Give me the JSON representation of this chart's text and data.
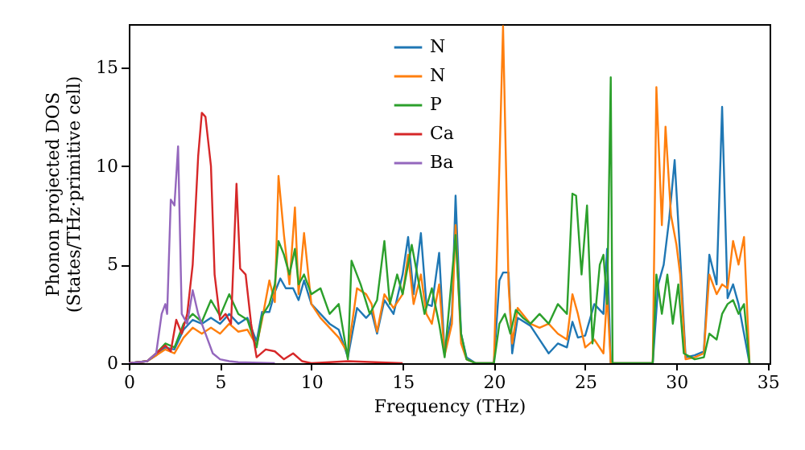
{
  "chart_data": {
    "type": "line",
    "xlabel": "Frequency (THz)",
    "ylabel": "Phonon projected DOS\n(States/THz·primitive cell)",
    "xlim": [
      0,
      35.1
    ],
    "ylim": [
      0,
      17.2
    ],
    "xticks": [
      0,
      5,
      10,
      15,
      20,
      25,
      30,
      35
    ],
    "yticks": [
      0,
      5,
      10,
      15
    ],
    "grid": false,
    "legend": "top",
    "line_style": "solid",
    "marker": "none",
    "series": [
      {
        "name": "N",
        "color": "#1f77b4",
        "x": [
          0,
          1,
          1.5,
          2,
          2.5,
          3,
          3.5,
          4,
          4.5,
          5,
          5.5,
          6,
          6.5,
          7,
          7.3,
          7.7,
          8,
          8.3,
          8.6,
          9,
          9.3,
          9.6,
          10,
          10.5,
          11,
          11.5,
          12,
          12.5,
          13,
          13.3,
          13.6,
          14,
          14.5,
          15,
          15.3,
          15.6,
          16,
          16.3,
          16.6,
          17,
          17.3,
          17.7,
          17.9,
          18.2,
          18.5,
          19,
          20,
          20.3,
          20.5,
          20.8,
          21,
          21.3,
          22,
          22.5,
          23,
          23.5,
          24,
          24.3,
          24.6,
          25,
          25.5,
          26,
          26.2,
          26.4,
          28.7,
          29,
          29.3,
          29.6,
          29.9,
          30.2,
          30.5,
          31,
          31.5,
          31.8,
          32.2,
          32.5,
          32.8,
          33.1,
          33.4,
          33.7,
          34
        ],
        "values": [
          0,
          0.1,
          0.4,
          0.8,
          0.7,
          1.7,
          2.2,
          2.0,
          2.3,
          2.0,
          2.5,
          2.0,
          2.3,
          1.1,
          2.6,
          2.6,
          3.6,
          4.3,
          3.8,
          3.8,
          3.2,
          4.2,
          3.0,
          2.5,
          2.0,
          1.7,
          0.3,
          2.8,
          2.3,
          2.6,
          1.5,
          3.2,
          2.5,
          4.5,
          6.4,
          3.5,
          6.6,
          3.0,
          2.9,
          5.6,
          0.5,
          2.5,
          8.5,
          1.5,
          0.3,
          0,
          0,
          4.2,
          4.6,
          4.6,
          0.5,
          2.3,
          1.9,
          1.2,
          0.5,
          1.0,
          0.8,
          2.1,
          1.3,
          1.4,
          3.0,
          2.5,
          5.8,
          0,
          0,
          4.0,
          5.0,
          7.3,
          10.3,
          5.5,
          0.3,
          0.4,
          0.6,
          5.5,
          4.0,
          13.0,
          3.3,
          4.0,
          3.0,
          1.5,
          0
        ]
      },
      {
        "name": "N",
        "color": "#ff7f0e",
        "x": [
          0,
          1,
          1.5,
          2,
          2.5,
          3,
          3.5,
          4,
          4.5,
          5,
          5.5,
          6,
          6.5,
          7,
          7.3,
          7.7,
          8,
          8.2,
          8.5,
          8.8,
          9.1,
          9.3,
          9.6,
          10,
          10.5,
          11,
          11.5,
          12,
          12.5,
          13,
          13.3,
          13.6,
          14,
          14.5,
          15,
          15.3,
          15.6,
          16,
          16.3,
          16.6,
          17,
          17.3,
          17.7,
          17.9,
          18.2,
          18.5,
          19,
          20,
          20.3,
          20.5,
          20.8,
          21,
          21.3,
          22,
          22.5,
          23,
          23.5,
          24,
          24.3,
          24.6,
          25,
          25.5,
          26,
          26.2,
          26.4,
          28.7,
          28.9,
          29.2,
          29.4,
          29.7,
          30,
          30.2,
          30.5,
          31,
          31.5,
          31.8,
          32.2,
          32.5,
          32.8,
          33.1,
          33.4,
          33.7,
          34
        ],
        "values": [
          0,
          0.1,
          0.4,
          0.7,
          0.5,
          1.3,
          1.8,
          1.5,
          1.8,
          1.5,
          2.0,
          1.6,
          1.7,
          0.9,
          2.2,
          4.2,
          3.1,
          9.5,
          6.5,
          4.0,
          7.9,
          3.5,
          6.6,
          3.0,
          2.3,
          1.8,
          1.3,
          0.5,
          3.8,
          3.5,
          3.0,
          1.6,
          3.5,
          2.8,
          3.5,
          5.5,
          3.0,
          4.5,
          2.5,
          2.0,
          4.0,
          0.4,
          2.0,
          7.0,
          1.0,
          0.2,
          0,
          0,
          10.0,
          17.1,
          4.0,
          1.0,
          2.8,
          2.0,
          1.8,
          2.0,
          1.5,
          1.2,
          3.5,
          2.5,
          0.8,
          1.2,
          0.5,
          3.5,
          0,
          0,
          14.0,
          7.0,
          12.0,
          7.5,
          6.0,
          4.5,
          0.2,
          0.3,
          0.5,
          4.5,
          3.5,
          4.0,
          3.8,
          6.2,
          5.0,
          6.4,
          0
        ]
      },
      {
        "name": "P",
        "color": "#2ca02c",
        "x": [
          0,
          1,
          1.5,
          2,
          2.5,
          3,
          3.5,
          4,
          4.5,
          5,
          5.5,
          6,
          6.5,
          7,
          7.3,
          7.7,
          8,
          8.2,
          8.5,
          8.8,
          9.1,
          9.3,
          9.6,
          10,
          10.5,
          11,
          11.5,
          12,
          12.2,
          12.7,
          13.2,
          13.6,
          14,
          14.3,
          14.7,
          15,
          15.5,
          15.8,
          16.2,
          16.6,
          17,
          17.3,
          17.9,
          18.2,
          18.5,
          19,
          20,
          20.3,
          20.6,
          20.9,
          21.2,
          21.6,
          22,
          22.5,
          23,
          23.5,
          24,
          24.3,
          24.5,
          24.8,
          25.1,
          25.4,
          25.8,
          26.0,
          26.2,
          26.4,
          26.5,
          28.7,
          28.9,
          29.2,
          29.5,
          29.8,
          30.1,
          30.4,
          31,
          31.5,
          31.8,
          32.2,
          32.5,
          32.8,
          33.1,
          33.4,
          33.7,
          34
        ],
        "values": [
          0,
          0.1,
          0.5,
          1.0,
          0.8,
          2.0,
          2.5,
          2.1,
          3.2,
          2.4,
          3.5,
          2.5,
          2.2,
          0.8,
          2.4,
          3.0,
          4.0,
          6.2,
          5.5,
          4.5,
          5.8,
          4.0,
          4.5,
          3.5,
          3.8,
          2.5,
          3.0,
          0.2,
          5.2,
          4.0,
          2.5,
          3.2,
          6.2,
          3.0,
          4.5,
          3.5,
          6.0,
          4.5,
          2.5,
          3.8,
          2.0,
          0.3,
          6.5,
          1.5,
          0.2,
          0,
          0,
          2.0,
          2.5,
          1.5,
          2.7,
          2.3,
          2.0,
          2.5,
          2.0,
          3.0,
          2.5,
          8.6,
          8.5,
          4.5,
          8.0,
          1.0,
          5.0,
          5.5,
          3.0,
          14.5,
          0,
          0,
          4.5,
          2.5,
          4.5,
          2.0,
          4.0,
          0.5,
          0.2,
          0.3,
          1.5,
          1.2,
          2.5,
          3.0,
          3.2,
          2.5,
          3.0,
          0
        ]
      },
      {
        "name": "Ca",
        "color": "#d62728",
        "x": [
          0,
          1,
          1.5,
          2,
          2.3,
          2.6,
          2.9,
          3.2,
          3.5,
          3.8,
          4.0,
          4.2,
          4.5,
          4.7,
          5.0,
          5.3,
          5.6,
          5.9,
          6.1,
          6.4,
          6.7,
          7.0,
          7.5,
          8.0,
          8.5,
          9.0,
          9.5,
          10,
          12,
          15
        ],
        "values": [
          0,
          0.1,
          0.5,
          0.9,
          0.6,
          2.2,
          1.5,
          2.5,
          5.0,
          10.5,
          12.7,
          12.5,
          10.0,
          4.5,
          2.2,
          2.5,
          2.0,
          9.1,
          4.8,
          4.5,
          2.0,
          0.3,
          0.7,
          0.6,
          0.2,
          0.5,
          0.1,
          0,
          0.1,
          0
        ]
      },
      {
        "name": "Ba",
        "color": "#9467bd",
        "x": [
          0,
          1,
          1.5,
          1.8,
          2.0,
          2.1,
          2.3,
          2.5,
          2.7,
          2.9,
          3.2,
          3.5,
          3.8,
          4.2,
          4.6,
          5.0,
          5.5,
          6.0,
          8.0
        ],
        "values": [
          0,
          0.1,
          0.5,
          2.5,
          3.0,
          2.5,
          8.3,
          8.0,
          11.0,
          2.5,
          2.0,
          3.7,
          2.5,
          1.5,
          0.5,
          0.2,
          0.1,
          0.05,
          0
        ]
      }
    ]
  }
}
